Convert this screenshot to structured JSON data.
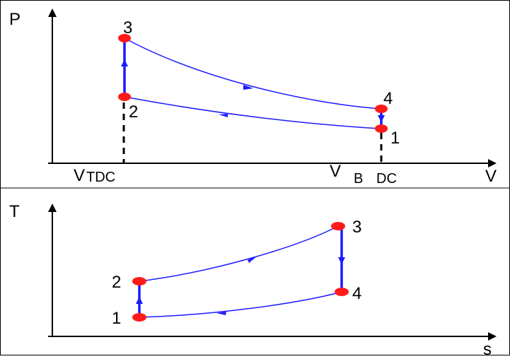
{
  "pv": {
    "y_label": "P",
    "x_label": "V",
    "tdc_label": {
      "v": "V",
      "rest": "TDC"
    },
    "bdc_label": {
      "v": "V",
      "b": "B",
      "rest": "DC"
    },
    "point_labels": [
      "1",
      "2",
      "3",
      "4"
    ]
  },
  "ts": {
    "y_label": "T",
    "x_label": "s",
    "point_labels": [
      "1",
      "2",
      "3",
      "4"
    ]
  },
  "colors": {
    "curve": "#1a1aff",
    "point": "#ff1a1a",
    "axis": "#000000",
    "border": "#000000"
  }
}
